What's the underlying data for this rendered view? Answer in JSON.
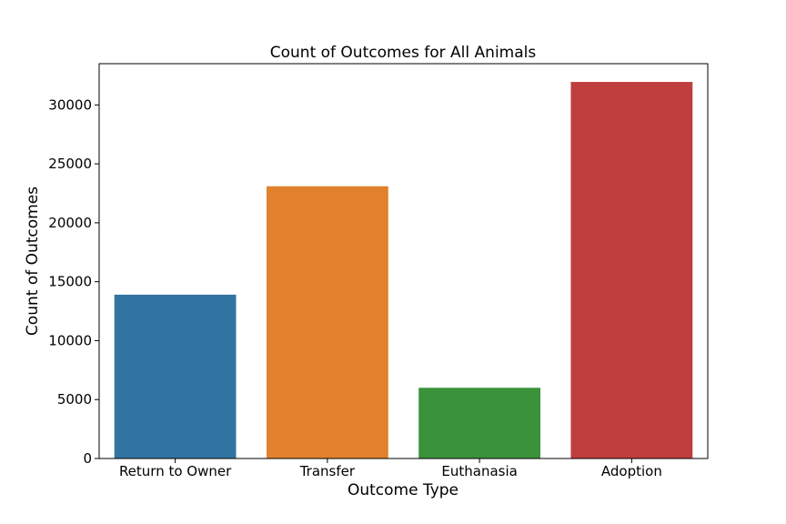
{
  "chart_data": {
    "type": "bar",
    "title": "Count of Outcomes for All Animals",
    "xlabel": "Outcome Type",
    "ylabel": "Count of Outcomes",
    "categories": [
      "Return to Owner",
      "Transfer",
      "Euthanasia",
      "Adoption"
    ],
    "values": [
      13900,
      23100,
      6000,
      31950
    ],
    "colors": [
      "#3274a1",
      "#e1812c",
      "#3a923a",
      "#c03d3e"
    ],
    "ylim": [
      0,
      33500
    ],
    "yticks": [
      0,
      5000,
      10000,
      15000,
      20000,
      25000,
      30000
    ],
    "grid": false,
    "legend": "none"
  }
}
